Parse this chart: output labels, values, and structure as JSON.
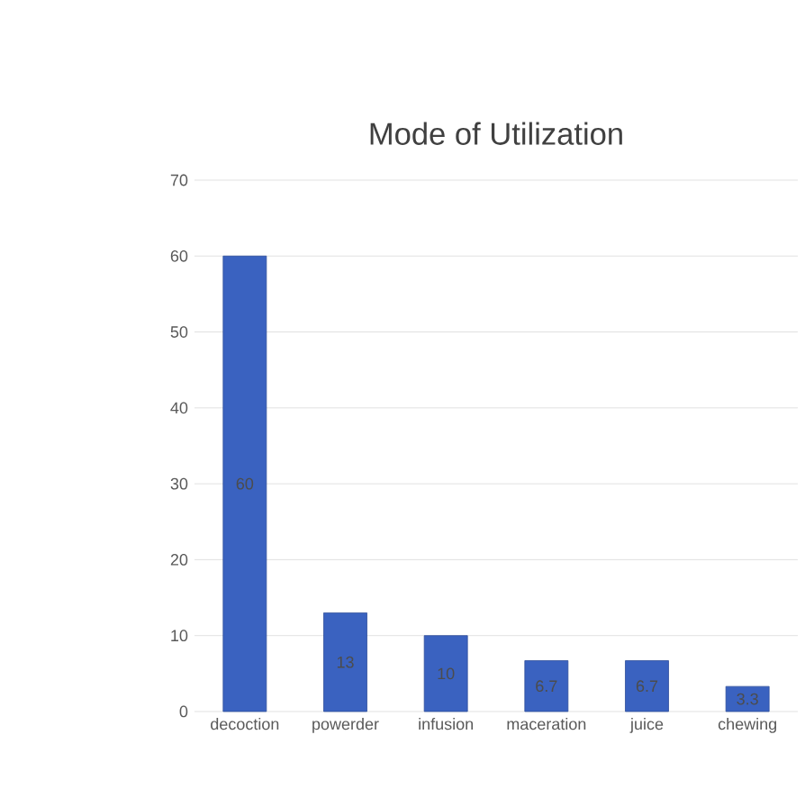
{
  "chart_data": {
    "type": "bar",
    "title": "Mode of Utilization",
    "categories": [
      "decoction",
      "powerder",
      "infusion",
      "maceration",
      "juice",
      "chewing"
    ],
    "values": [
      60,
      13,
      10,
      6.7,
      6.7,
      3.3
    ],
    "color": "#3a62c0",
    "ylim": [
      0,
      70
    ],
    "yticks": [
      0,
      10,
      20,
      30,
      40,
      50,
      60,
      70
    ],
    "grid": "y",
    "data_labels": true
  }
}
